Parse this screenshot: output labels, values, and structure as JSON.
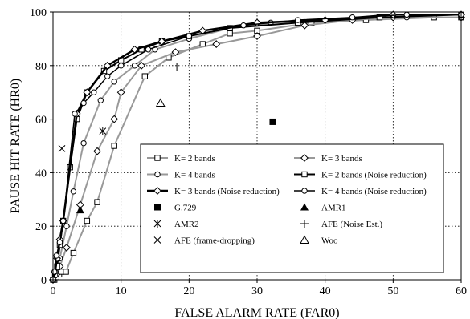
{
  "chart_data": {
    "type": "line",
    "title": "",
    "xlabel": "FALSE ALARM RATE (FAR0)",
    "ylabel": "PAUSE HIT RATE (HR0)",
    "xlim": [
      0,
      60
    ],
    "ylim": [
      0,
      100
    ],
    "xticks": [
      0,
      10,
      20,
      30,
      40,
      50,
      60
    ],
    "yticks": [
      0,
      20,
      40,
      60,
      80,
      100
    ],
    "grid": "dotted",
    "legend": "inside-bottom-right",
    "series": [
      {
        "name": "K= 2 bands",
        "marker": "square-open",
        "color": "#999999",
        "lineWidth": 2,
        "points": [
          [
            0.2,
            0
          ],
          [
            0.5,
            1
          ],
          [
            0.9,
            2
          ],
          [
            1.2,
            3
          ],
          [
            1.9,
            3
          ],
          [
            3,
            10
          ],
          [
            5,
            22
          ],
          [
            6.5,
            29
          ],
          [
            9,
            50
          ],
          [
            13.5,
            76
          ],
          [
            17,
            83
          ],
          [
            22,
            88
          ],
          [
            26,
            92
          ],
          [
            30,
            93
          ],
          [
            38,
            96
          ],
          [
            46,
            97
          ],
          [
            56,
            98
          ],
          [
            60,
            98
          ]
        ]
      },
      {
        "name": "K= 3 bands",
        "marker": "diamond-open",
        "color": "#999999",
        "lineWidth": 2,
        "points": [
          [
            0,
            0
          ],
          [
            0.5,
            2
          ],
          [
            1,
            5
          ],
          [
            2,
            12
          ],
          [
            4,
            28
          ],
          [
            6.5,
            48
          ],
          [
            9,
            60
          ],
          [
            10,
            70
          ],
          [
            13,
            80
          ],
          [
            18,
            85
          ],
          [
            24,
            88
          ],
          [
            30,
            91
          ],
          [
            37,
            95
          ],
          [
            44,
            97
          ],
          [
            50,
            98
          ],
          [
            60,
            98
          ]
        ]
      },
      {
        "name": "K= 4 bands",
        "marker": "circle-open",
        "color": "#999999",
        "lineWidth": 2,
        "points": [
          [
            0,
            0
          ],
          [
            0.5,
            3
          ],
          [
            1,
            8
          ],
          [
            2,
            20
          ],
          [
            3,
            33
          ],
          [
            4.5,
            51
          ],
          [
            7,
            67
          ],
          [
            9,
            74
          ],
          [
            12,
            80
          ],
          [
            15,
            86
          ],
          [
            20,
            90
          ],
          [
            26,
            94
          ],
          [
            32,
            96
          ],
          [
            40,
            97
          ],
          [
            52,
            98
          ],
          [
            60,
            98
          ]
        ]
      },
      {
        "name": "K= 2 bands (Noise reduction)",
        "marker": "square-open",
        "color": "#000000",
        "lineWidth": 2,
        "points": [
          [
            0,
            0
          ],
          [
            0.3,
            2
          ],
          [
            0.6,
            5
          ],
          [
            1,
            13
          ],
          [
            1.5,
            22
          ],
          [
            2.5,
            42
          ],
          [
            3.5,
            60
          ],
          [
            5,
            70
          ],
          [
            7.5,
            78
          ],
          [
            10,
            82
          ],
          [
            13,
            86
          ],
          [
            16,
            89
          ],
          [
            20,
            91
          ],
          [
            26,
            94
          ],
          [
            36,
            96
          ],
          [
            48,
            98
          ],
          [
            60,
            99
          ]
        ]
      },
      {
        "name": "K= 3 bands (Noise reduction)",
        "marker": "diamond-open",
        "color": "#000000",
        "lineWidth": 2.5,
        "points": [
          [
            0,
            0
          ],
          [
            0.3,
            3
          ],
          [
            0.6,
            8
          ],
          [
            1,
            15
          ],
          [
            1.5,
            22
          ],
          [
            3.5,
            62
          ],
          [
            5,
            70
          ],
          [
            8,
            80
          ],
          [
            12,
            86
          ],
          [
            16,
            89
          ],
          [
            22,
            93
          ],
          [
            30,
            96
          ],
          [
            40,
            97
          ],
          [
            50,
            99
          ],
          [
            60,
            99
          ]
        ]
      },
      {
        "name": "K= 4 bands (Noise reduction)",
        "marker": "circle-open",
        "color": "#000000",
        "lineWidth": 1.5,
        "points": [
          [
            0,
            0
          ],
          [
            0.2,
            3
          ],
          [
            0.5,
            9
          ],
          [
            1,
            14
          ],
          [
            1.5,
            22
          ],
          [
            3.2,
            62
          ],
          [
            4.5,
            66
          ],
          [
            6,
            70
          ],
          [
            8,
            76
          ],
          [
            10,
            80
          ],
          [
            14,
            86
          ],
          [
            20,
            91
          ],
          [
            28,
            95
          ],
          [
            36,
            97
          ],
          [
            44,
            98
          ],
          [
            52,
            99
          ],
          [
            60,
            99
          ]
        ]
      },
      {
        "name": "G.729",
        "marker": "square-filled",
        "points": [
          [
            32.3,
            59
          ]
        ]
      },
      {
        "name": "AMR1",
        "marker": "triangle-filled",
        "points": [
          [
            4,
            26
          ]
        ]
      },
      {
        "name": "AMR2",
        "marker": "asterisk",
        "points": [
          [
            7.3,
            55.5
          ]
        ]
      },
      {
        "name": "AFE (Noise Est.)",
        "marker": "plus",
        "points": [
          [
            18.2,
            79.5
          ]
        ]
      },
      {
        "name": "AFE (frame-dropping)",
        "marker": "cross",
        "points": [
          [
            1.3,
            49
          ]
        ]
      },
      {
        "name": "Woo",
        "marker": "triangle-open",
        "points": [
          [
            15.8,
            66
          ]
        ]
      }
    ]
  }
}
